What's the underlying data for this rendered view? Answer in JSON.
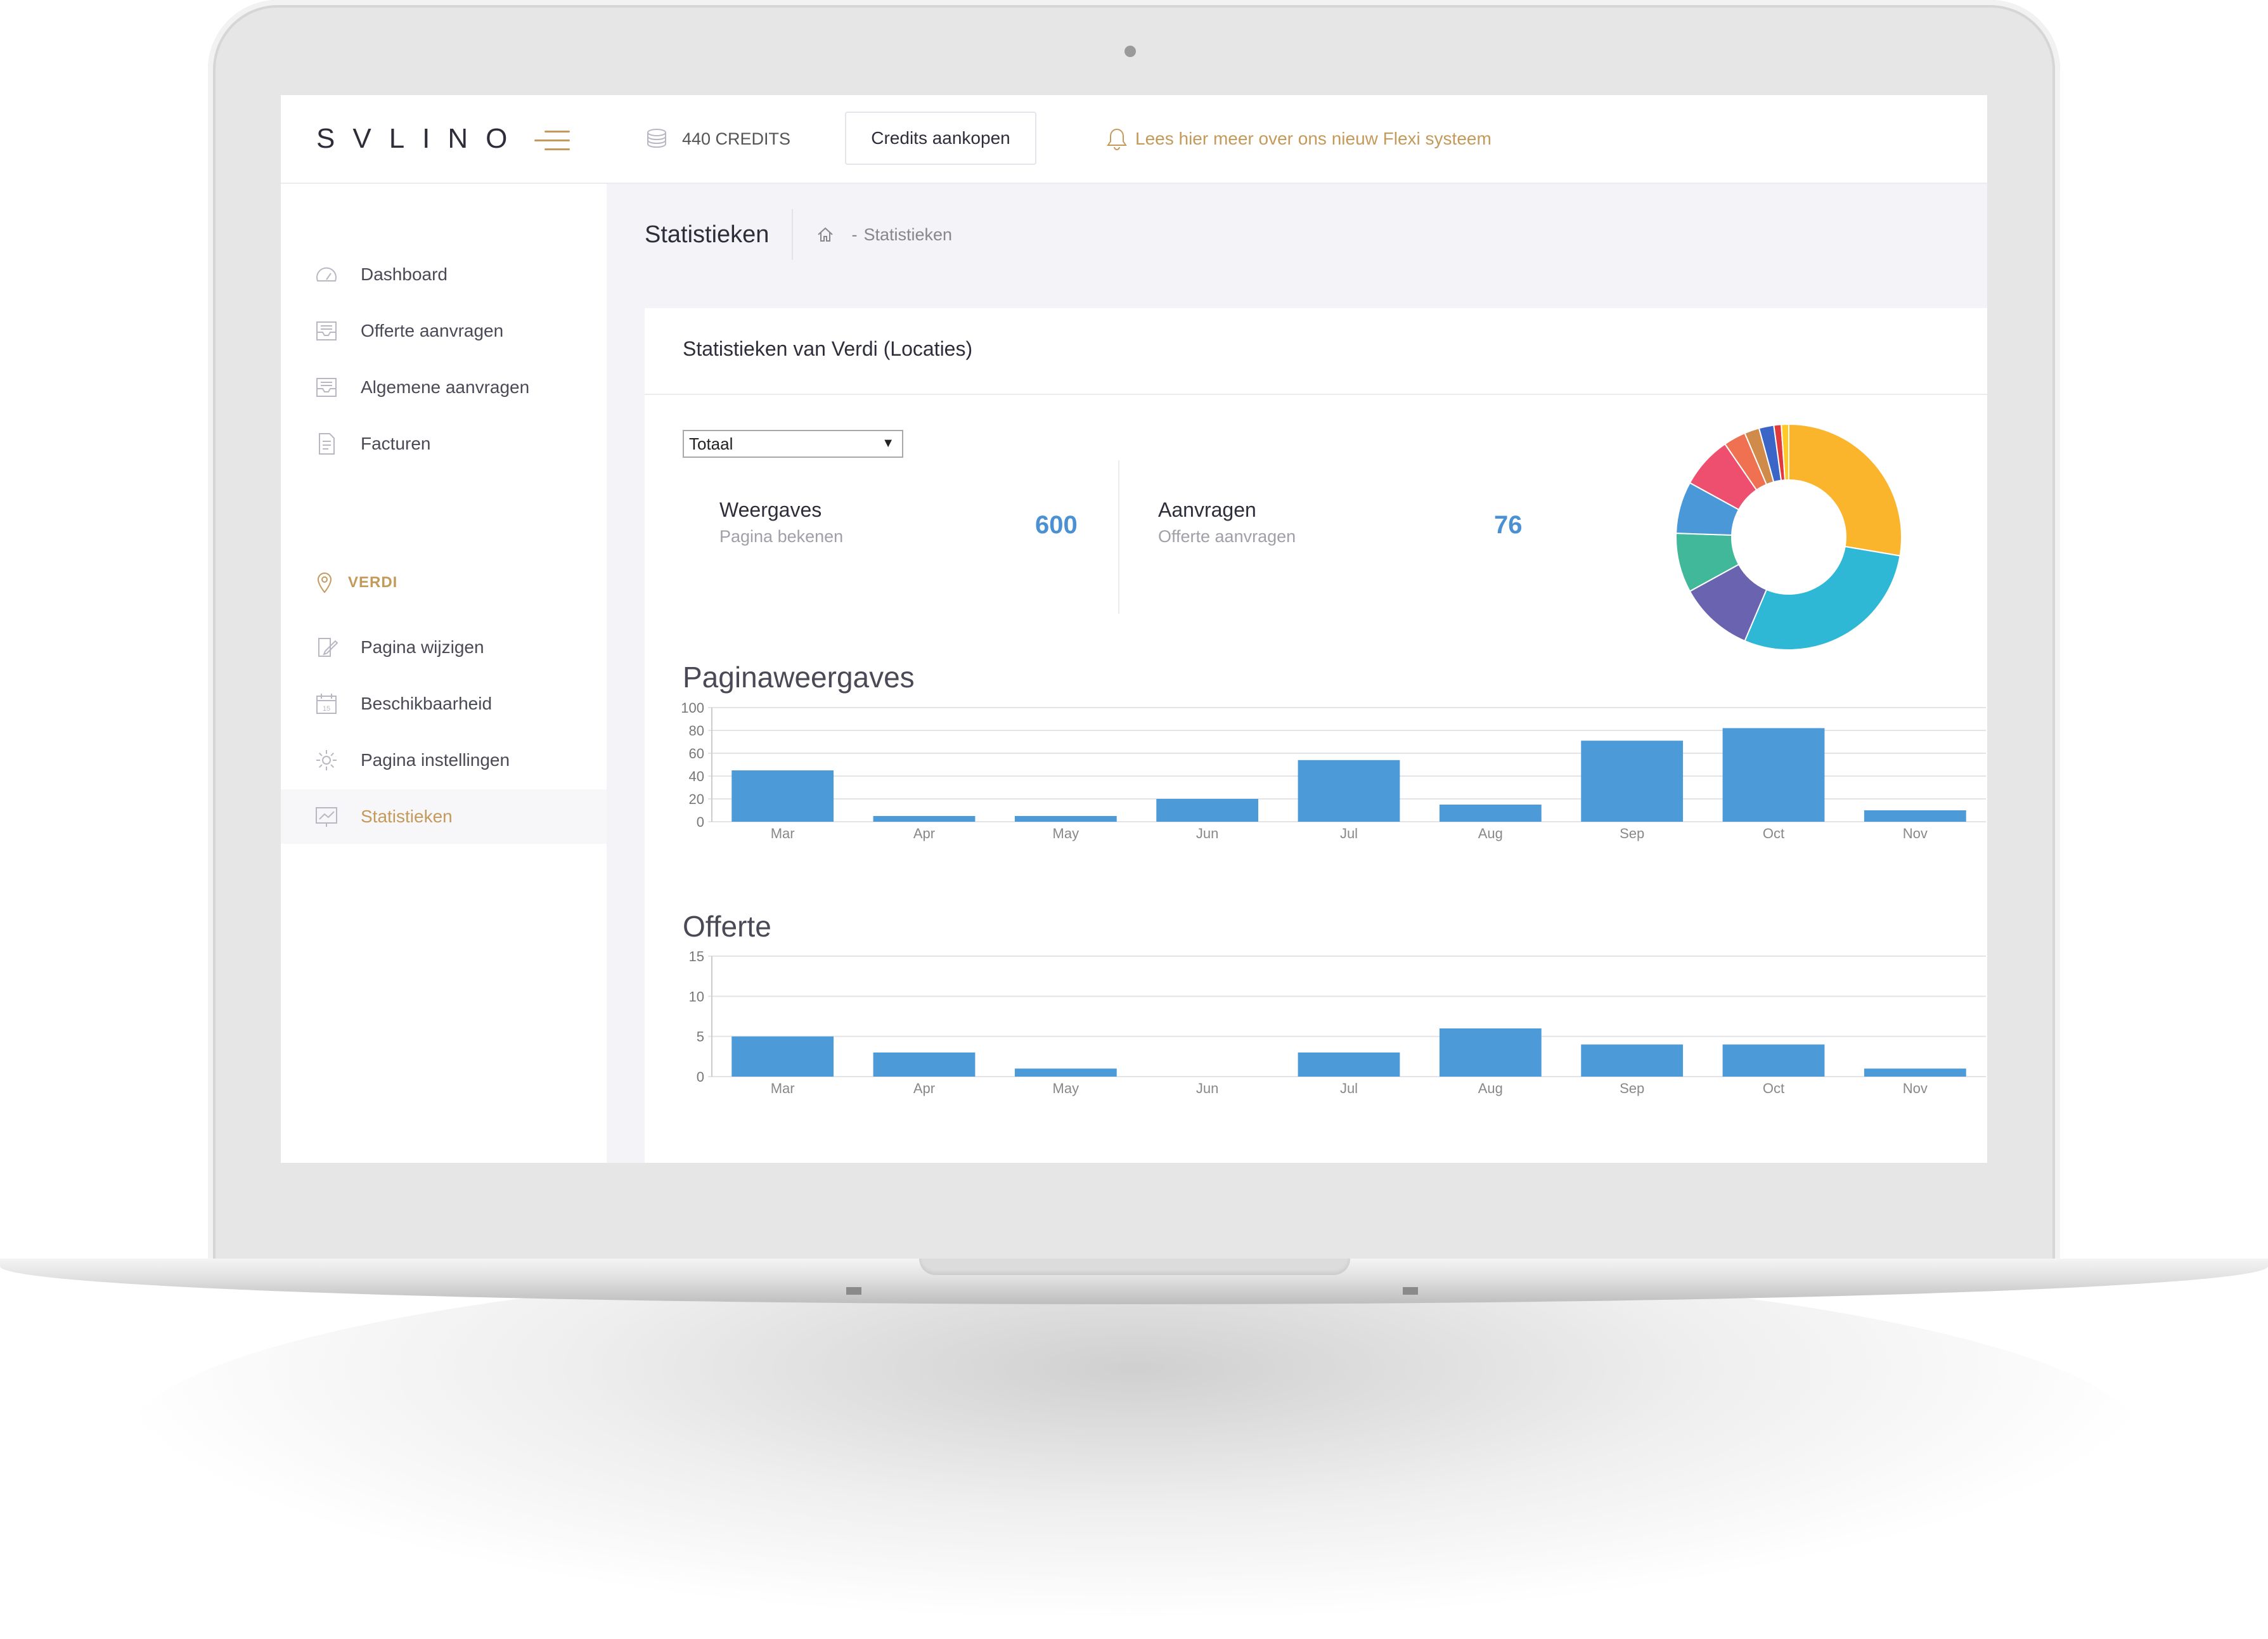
{
  "topbar": {
    "logo": "SVLINO",
    "credits_label": "440 CREDITS",
    "buy_button": "Credits aankopen",
    "notice": "Lees hier meer over ons nieuw Flexi systeem"
  },
  "sidebar": {
    "items": [
      {
        "label": "Dashboard",
        "icon": "dashboard-icon"
      },
      {
        "label": "Offerte aanvragen",
        "icon": "inbox-icon"
      },
      {
        "label": "Algemene aanvragen",
        "icon": "inbox-icon"
      },
      {
        "label": "Facturen",
        "icon": "document-icon"
      }
    ],
    "section": {
      "label": "VERDI",
      "icon": "location-pin-icon"
    },
    "section_items": [
      {
        "label": "Pagina wijzigen",
        "icon": "edit-icon"
      },
      {
        "label": "Beschikbaarheid",
        "icon": "calendar-icon",
        "calendar_day": "15"
      },
      {
        "label": "Pagina instellingen",
        "icon": "gear-icon"
      },
      {
        "label": "Statistieken",
        "icon": "chart-icon",
        "active": true
      }
    ]
  },
  "page": {
    "title": "Statistieken",
    "breadcrumb": {
      "home_icon": "home-icon",
      "separator": "-",
      "current": "Statistieken"
    }
  },
  "card": {
    "title": "Statistieken van Verdi (Locaties)",
    "select": {
      "value": "Totaal"
    },
    "stats": [
      {
        "name": "Weergaves",
        "sub": "Pagina bekenen",
        "value": "600"
      },
      {
        "name": "Aanvragen",
        "sub": "Offerte aanvragen",
        "value": "76"
      }
    ]
  },
  "colors": {
    "accent": "#c49a5a",
    "bar": "#4d9ad9",
    "number": "#4a90d2"
  },
  "chart_data": [
    {
      "type": "pie",
      "donut": true,
      "values": [
        26,
        27,
        10,
        8,
        7,
        7,
        3,
        2,
        2,
        1,
        1
      ],
      "colors": [
        "#fbb52c",
        "#2fb8d6",
        "#6a63b0",
        "#41b89a",
        "#4a98d8",
        "#ee4f6f",
        "#f07052",
        "#d08a4a",
        "#3b66c8",
        "#e03a3a",
        "#ffc928"
      ]
    },
    {
      "type": "bar",
      "title": "Paginaweergaves",
      "categories": [
        "Mar",
        "Apr",
        "May",
        "Jun",
        "Jul",
        "Aug",
        "Sep",
        "Oct",
        "Nov"
      ],
      "values": [
        45,
        5,
        5,
        20,
        54,
        15,
        71,
        82,
        10
      ],
      "ylim": [
        0,
        100
      ],
      "yticks": [
        "0",
        "20",
        "40",
        "60",
        "80",
        "100"
      ],
      "grid": true
    },
    {
      "type": "bar",
      "title": "Offerte",
      "categories": [
        "Mar",
        "Apr",
        "May",
        "Jun",
        "Jul",
        "Aug",
        "Sep",
        "Oct",
        "Nov"
      ],
      "values": [
        5,
        3,
        1,
        0,
        3,
        6,
        4,
        4,
        1
      ],
      "ylim": [
        0,
        15
      ],
      "yticks": [
        "0",
        "5",
        "10",
        "15"
      ],
      "grid": true
    }
  ]
}
